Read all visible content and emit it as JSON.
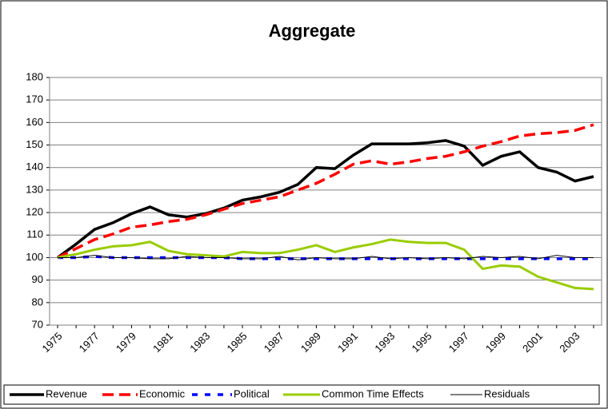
{
  "chart_data": {
    "type": "line",
    "title": "Aggregate",
    "categories": [
      "1975",
      null,
      "1977",
      null,
      "1979",
      null,
      "1981",
      null,
      "1983",
      null,
      "1985",
      null,
      "1987",
      null,
      "1989",
      null,
      "1991",
      null,
      "1993",
      null,
      "1995",
      null,
      "1997",
      null,
      "1999",
      null,
      "2001",
      null,
      "2003",
      null
    ],
    "ylim": [
      70,
      180
    ],
    "yticks": [
      70,
      80,
      90,
      100,
      110,
      120,
      130,
      140,
      150,
      160,
      170,
      180
    ],
    "grid": true,
    "series": [
      {
        "name": "Revenue",
        "color": "#000000",
        "values": [
          100,
          106,
          112.5,
          115.5,
          119.5,
          122.5,
          119,
          118,
          119.5,
          122,
          125.5,
          127,
          129,
          132.5,
          140,
          139.5,
          145.5,
          150.5,
          150.5,
          150.5,
          151,
          152,
          149.5,
          141,
          145,
          147,
          140,
          138,
          134,
          136
        ]
      },
      {
        "name": "Economic",
        "color": "#ff0000",
        "values": [
          100,
          104,
          108,
          110.5,
          113.5,
          114.5,
          116,
          117,
          119,
          121.5,
          124,
          125.5,
          127,
          130,
          133,
          137,
          141.5,
          143,
          141.5,
          142.5,
          144,
          145,
          147,
          149.5,
          151.5,
          154,
          155,
          155.5,
          156.5,
          159
        ]
      },
      {
        "name": "Political",
        "color": "#0000ff",
        "values": [
          100,
          100,
          100.5,
          100,
          100,
          100,
          100,
          100,
          100,
          100,
          99.5,
          99.5,
          99.5,
          99.5,
          99.5,
          99.5,
          99.5,
          99.5,
          99.5,
          99.5,
          99.5,
          99.5,
          99.5,
          99.5,
          99.5,
          99.5,
          99.5,
          99.5,
          99.5,
          99.5
        ]
      },
      {
        "name": "Common Time Effects",
        "color": "#99cc00",
        "values": [
          100,
          101.5,
          103.5,
          105,
          105.5,
          107,
          103,
          101.5,
          101,
          100.5,
          102.5,
          102,
          102,
          103.5,
          105.5,
          102.5,
          104.5,
          106,
          108,
          107,
          106.5,
          106.5,
          103.5,
          95,
          96.5,
          96,
          91.5,
          89,
          86.5,
          86
        ]
      },
      {
        "name": "Residuals",
        "color": "#000000",
        "values": [
          100,
          100,
          101,
          100,
          100,
          99.5,
          99.5,
          100.5,
          100,
          100,
          99.5,
          99.5,
          100.5,
          99,
          100,
          99.5,
          99.5,
          100.5,
          99.5,
          100,
          99.5,
          100,
          99.5,
          100.5,
          100,
          100.5,
          99.5,
          101,
          100,
          100
        ]
      }
    ]
  }
}
